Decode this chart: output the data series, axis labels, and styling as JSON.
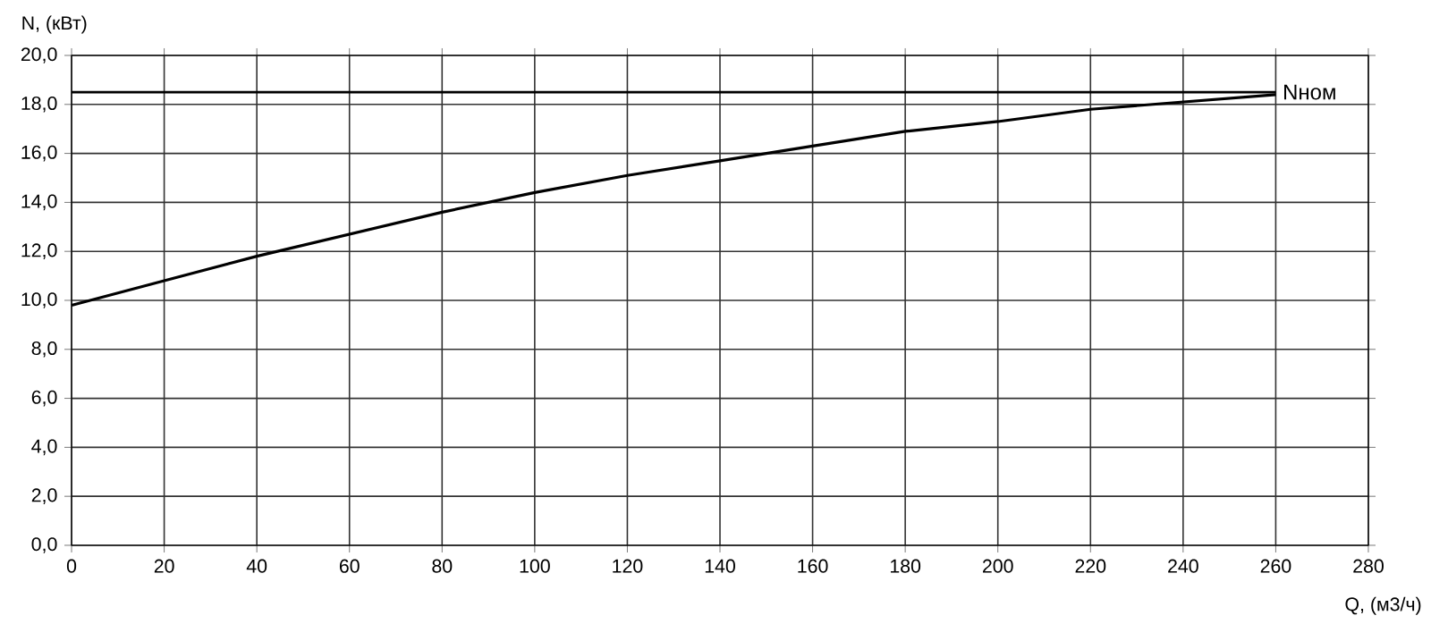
{
  "chart_data": {
    "type": "line",
    "xlabel": "Q, (м3/ч)",
    "ylabel": "N, (кВт)",
    "x": [
      0,
      20,
      40,
      60,
      80,
      100,
      120,
      140,
      160,
      180,
      200,
      220,
      240,
      260
    ],
    "series": [
      {
        "color": "#000000",
        "values": [
          9.8,
          10.8,
          11.8,
          12.7,
          13.6,
          14.4,
          15.1,
          15.7,
          16.3,
          16.9,
          17.3,
          17.8,
          18.1,
          18.4
        ]
      }
    ],
    "xlim": [
      0,
      280
    ],
    "xticks": [
      0,
      20,
      40,
      60,
      80,
      100,
      120,
      140,
      160,
      180,
      200,
      220,
      240,
      260,
      280
    ],
    "ylim": [
      0,
      20
    ],
    "yticks": [
      {
        "value": 0,
        "label": "0,0"
      },
      {
        "value": 2,
        "label": "2,0"
      },
      {
        "value": 4,
        "label": "4,0"
      },
      {
        "value": 6,
        "label": "6,0"
      },
      {
        "value": 8,
        "label": "8,0"
      },
      {
        "value": 10,
        "label": "10,0"
      },
      {
        "value": 12,
        "label": "12,0"
      },
      {
        "value": 14,
        "label": "14,0"
      },
      {
        "value": 16,
        "label": "16,0"
      },
      {
        "value": 18,
        "label": "18,0"
      },
      {
        "value": 20,
        "label": "20,0"
      }
    ],
    "ref_lines": [
      {
        "axis": "y",
        "value": 18.5,
        "label": "Nном",
        "color": "#000000"
      }
    ],
    "grid": true,
    "marker": "none",
    "line_style": "solid"
  }
}
